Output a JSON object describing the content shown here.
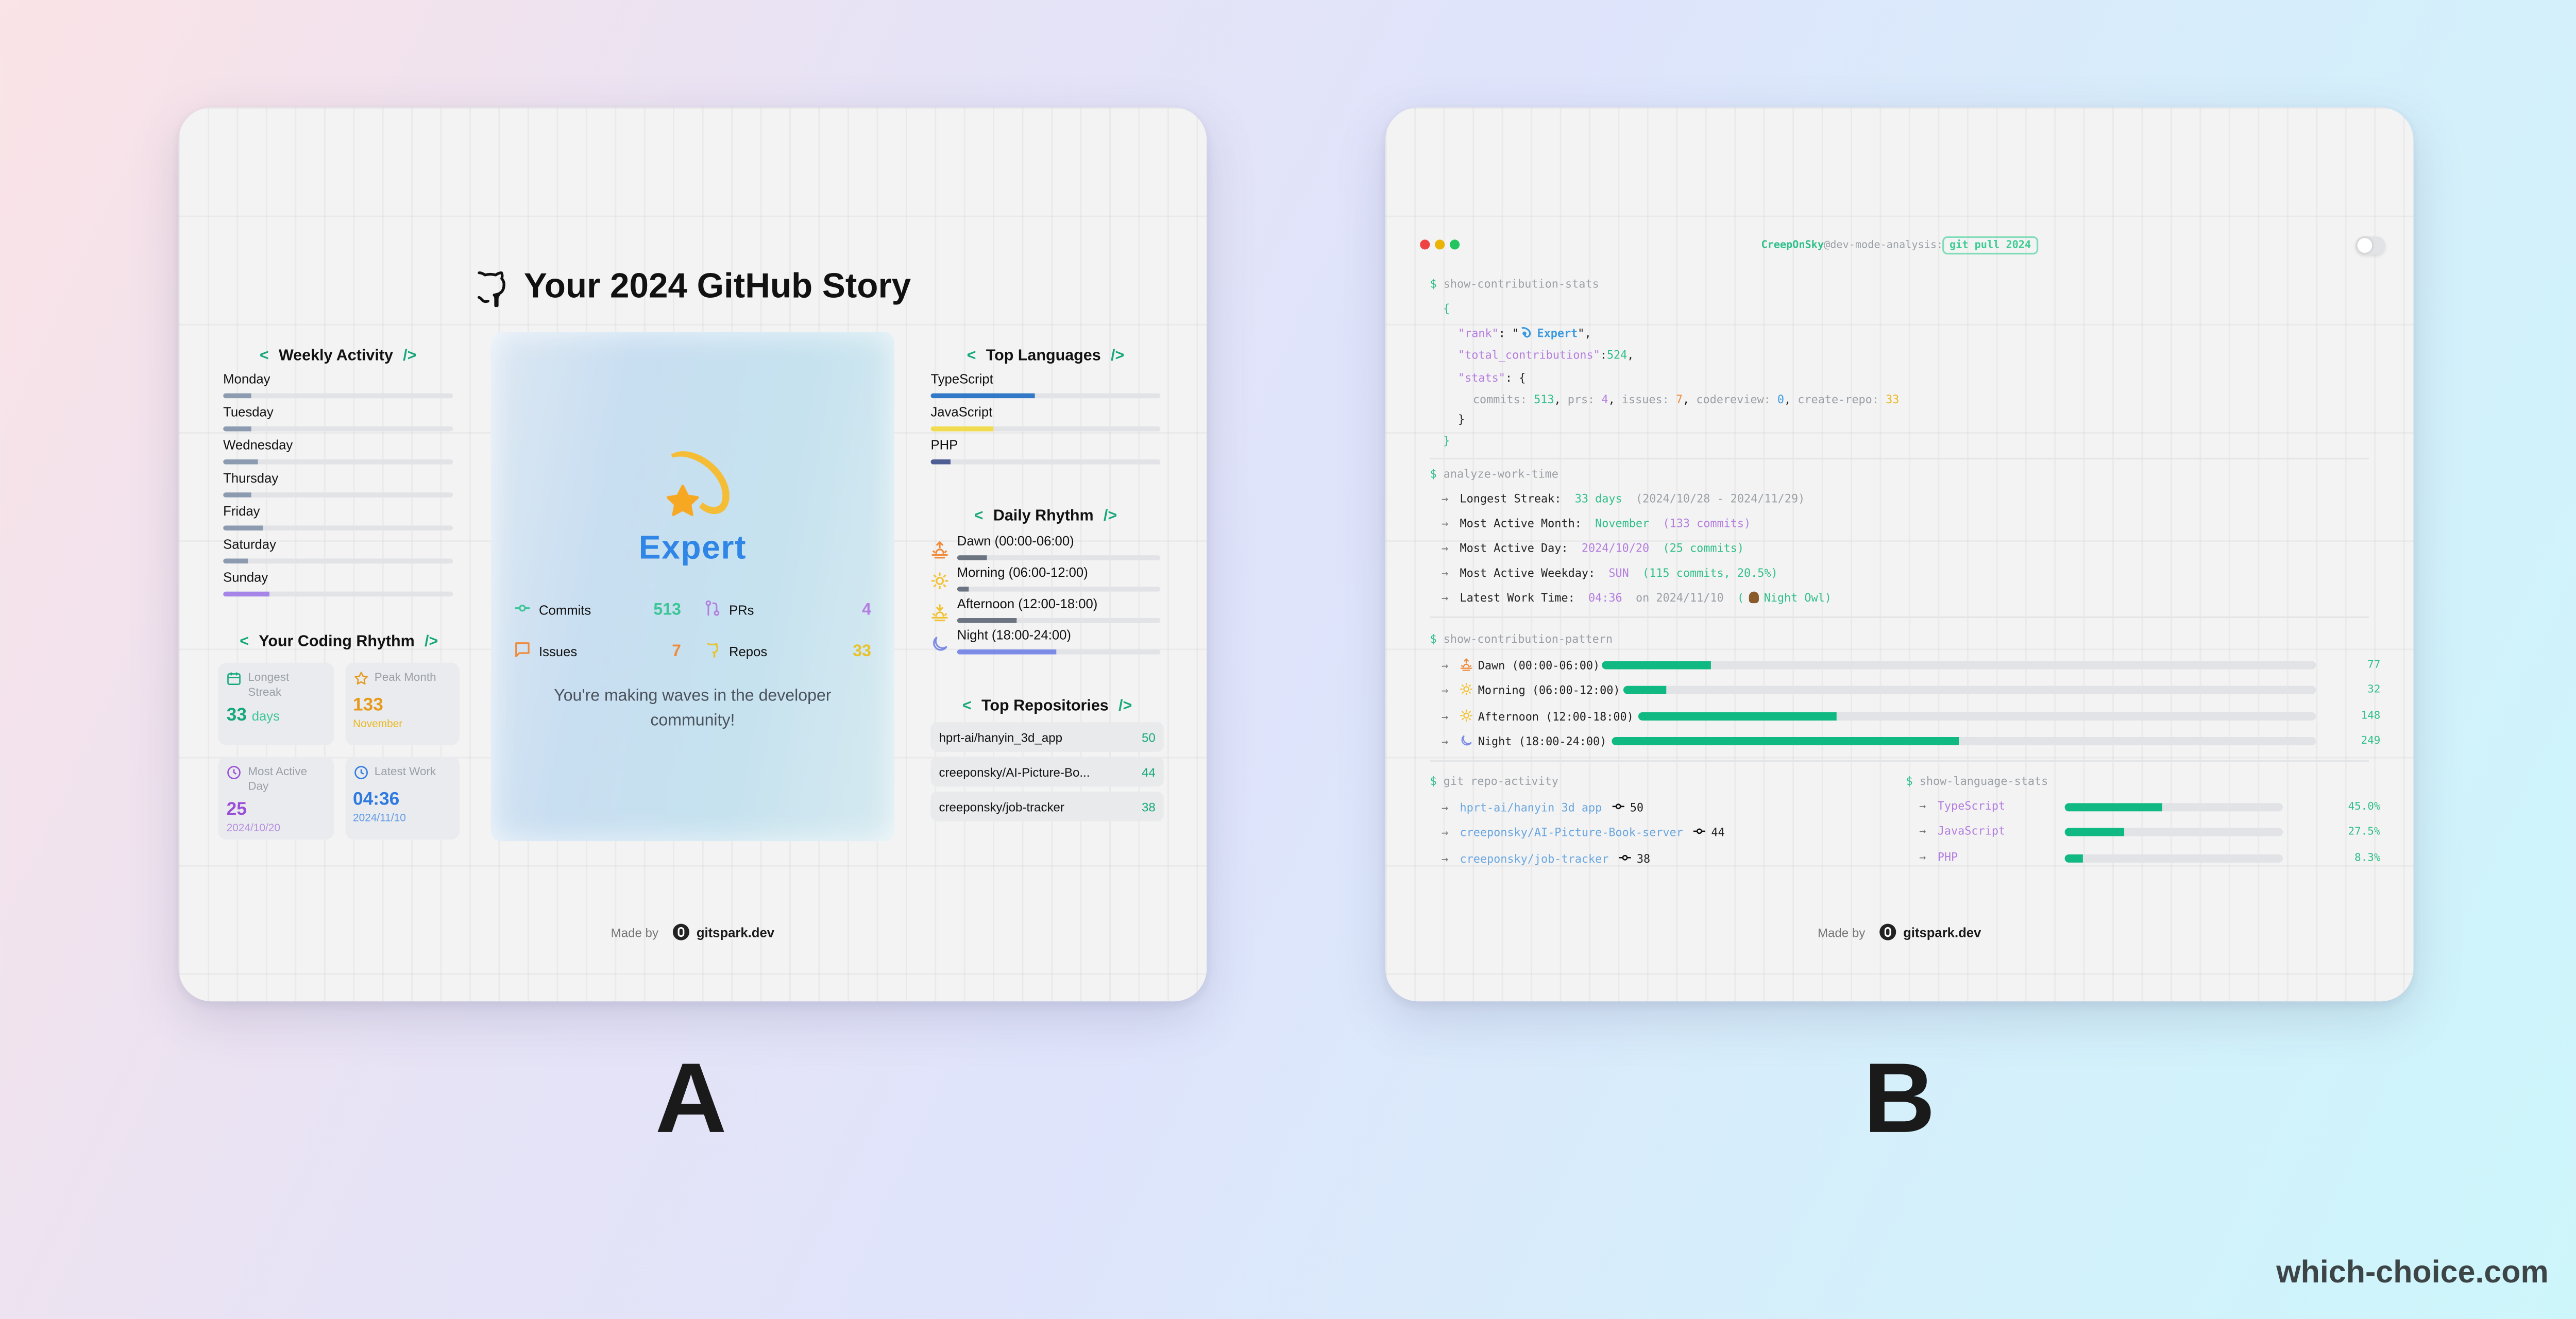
{
  "choices": {
    "a_label": "A",
    "b_label": "B",
    "watermark": "which-choice.com"
  },
  "colors": {
    "accent_green": "#10b981",
    "purple": "#b37ddf",
    "orange": "#f08a3a",
    "yellow": "#e8b923",
    "blue": "#2f86e6"
  },
  "card_a": {
    "title": "Your 2024 GitHub Story",
    "bracket_open": "<",
    "bracket_close": "/>",
    "weekly_activity": {
      "heading": "Weekly Activity",
      "days": [
        {
          "name": "Monday",
          "pct": 12,
          "color": "#8c9bb0"
        },
        {
          "name": "Tuesday",
          "pct": 12.5,
          "color": "#8c9bb0"
        },
        {
          "name": "Wednesday",
          "pct": 15,
          "color": "#8c9bb0"
        },
        {
          "name": "Thursday",
          "pct": 12,
          "color": "#8c9bb0"
        },
        {
          "name": "Friday",
          "pct": 17,
          "color": "#8c9bb0"
        },
        {
          "name": "Saturday",
          "pct": 11,
          "color": "#8c9bb0"
        },
        {
          "name": "Sunday",
          "pct": 20.5,
          "color": "#a585e8"
        }
      ]
    },
    "coding_rhythm": {
      "heading": "Your Coding Rhythm",
      "cards": [
        {
          "label": "Longest Streak",
          "value": "33",
          "unit": "days",
          "sub": "",
          "color": "#16a87a",
          "sub_color": "#3cc596",
          "icon": "calendar-icon"
        },
        {
          "label": "Peak Month",
          "value": "133",
          "unit": "",
          "sub": "November",
          "color": "#e69b1e",
          "sub_color": "#e8b923",
          "icon": "star-icon"
        },
        {
          "label": "Most Active Day",
          "value": "25",
          "unit": "",
          "sub": "2024/10/20",
          "color": "#9a4fd8",
          "sub_color": "#b58fe0",
          "icon": "clock-icon"
        },
        {
          "label": "Latest Work",
          "value": "04:36",
          "unit": "",
          "sub": "2024/11/10",
          "color": "#2f7ae0",
          "sub_color": "#5f9ae6",
          "icon": "clock-icon"
        }
      ]
    },
    "center": {
      "rank": "Expert",
      "stats": [
        {
          "label": "Commits",
          "value": "513",
          "color": "#3cc596",
          "icon": "commit-icon"
        },
        {
          "label": "PRs",
          "value": "4",
          "color": "#b37ddf",
          "icon": "pull-request-icon"
        },
        {
          "label": "Issues",
          "value": "7",
          "color": "#f08a3a",
          "icon": "issue-comment-icon"
        },
        {
          "label": "Repos",
          "value": "33",
          "color": "#e8c228",
          "icon": "github-repo-icon"
        }
      ],
      "message": "You're making waves in the developer community!"
    },
    "top_languages": {
      "heading": "Top Languages",
      "items": [
        {
          "name": "TypeScript",
          "pct": 45,
          "color": "#3178c6"
        },
        {
          "name": "JavaScript",
          "pct": 27.5,
          "color": "#f0dc4e"
        },
        {
          "name": "PHP",
          "pct": 8.3,
          "color": "#4f5d95"
        }
      ]
    },
    "daily_rhythm": {
      "heading": "Daily Rhythm",
      "items": [
        {
          "name": "Dawn (00:00-06:00)",
          "pct": 15,
          "color": "#6b7480",
          "icon": "sunrise-icon",
          "icon_color": "#f08a3a"
        },
        {
          "name": "Morning (06:00-12:00)",
          "pct": 6,
          "color": "#6b7480",
          "icon": "sun-icon",
          "icon_color": "#f2c232"
        },
        {
          "name": "Afternoon (12:00-18:00)",
          "pct": 29,
          "color": "#6b7480",
          "icon": "sunset-icon",
          "icon_color": "#f2c232"
        },
        {
          "name": "Night (18:00-24:00)",
          "pct": 49,
          "color": "#7b8be6",
          "icon": "moon-icon",
          "icon_color": "#7b8be6"
        }
      ]
    },
    "top_repositories": {
      "heading": "Top Repositories",
      "items": [
        {
          "name": "hprt-ai/hanyin_3d_app",
          "count": "50"
        },
        {
          "name": "creeponsky/AI-Picture-Bo...",
          "count": "44"
        },
        {
          "name": "creeponsky/job-tracker",
          "count": "38"
        }
      ]
    },
    "footer": {
      "made_by": "Made by",
      "brand": "gitspark.dev"
    }
  },
  "card_b": {
    "prompt": {
      "user": "CreepOnSky",
      "host": "@dev-mode-analysis:",
      "command": "git pull 2024"
    },
    "contribution_stats": {
      "command": "show-contribution-stats",
      "open_brace": "{",
      "close_brace": "}",
      "rank_key": "\"rank\"",
      "rank_value": "Expert",
      "total_key": "\"total_contributions\"",
      "total_value": "524",
      "stats_key": "\"stats\"",
      "stats": [
        {
          "key": "commits",
          "value": "513",
          "cls": "g"
        },
        {
          "key": "prs",
          "value": "4",
          "cls": "p"
        },
        {
          "key": "issues",
          "value": "7",
          "cls": "o"
        },
        {
          "key": "codereview",
          "value": "0",
          "cls": "b"
        },
        {
          "key": "create-repo",
          "value": "33",
          "cls": "y"
        }
      ]
    },
    "work_time": {
      "command": "analyze-work-time",
      "longest_streak": {
        "label": "Longest Streak:",
        "value": "33 days",
        "range": "(2024/10/28 - 2024/11/29)"
      },
      "active_month": {
        "label": "Most Active Month:",
        "value": "November",
        "detail": "(133 commits)"
      },
      "active_day": {
        "label": "Most Active Day:",
        "value": "2024/10/20",
        "detail": "(25 commits)"
      },
      "active_weekday": {
        "label": "Most Active Weekday:",
        "value": "SUN",
        "detail": "(115 commits, 20.5%)"
      },
      "latest_work": {
        "label": "Latest Work Time:",
        "value": "04:36",
        "on": "on 2024/11/10",
        "tag": "Night Owl"
      }
    },
    "contribution_pattern": {
      "command": "show-contribution-pattern",
      "items": [
        {
          "name": "Dawn (00:00-06:00)",
          "count": "77",
          "pct": 15.2,
          "icon": "sunrise-icon",
          "icon_color": "#f08a3a"
        },
        {
          "name": "Morning (06:00-12:00)",
          "count": "32",
          "pct": 6.3,
          "icon": "sun-icon",
          "icon_color": "#f2c232"
        },
        {
          "name": "Afternoon (12:00-18:00)",
          "count": "148",
          "pct": 29.2,
          "icon": "sun-icon",
          "icon_color": "#f2c232"
        },
        {
          "name": "Night (18:00-24:00)",
          "count": "249",
          "pct": 49.2,
          "icon": "moon-icon",
          "icon_color": "#7b8be6"
        }
      ]
    },
    "repo_activity": {
      "command": "git repo-activity",
      "items": [
        {
          "name": "hprt-ai/hanyin_3d_app",
          "count": "50"
        },
        {
          "name": "creeponsky/AI-Picture-Book-server",
          "count": "44"
        },
        {
          "name": "creeponsky/job-tracker",
          "count": "38"
        }
      ]
    },
    "language_stats": {
      "command": "show-language-stats",
      "items": [
        {
          "name": "TypeScript",
          "pct": 45.0,
          "label": "45.0%"
        },
        {
          "name": "JavaScript",
          "pct": 27.5,
          "label": "27.5%"
        },
        {
          "name": "PHP",
          "pct": 8.3,
          "label": "8.3%"
        }
      ]
    },
    "footer": {
      "made_by": "Made by",
      "brand": "gitspark.dev"
    }
  }
}
